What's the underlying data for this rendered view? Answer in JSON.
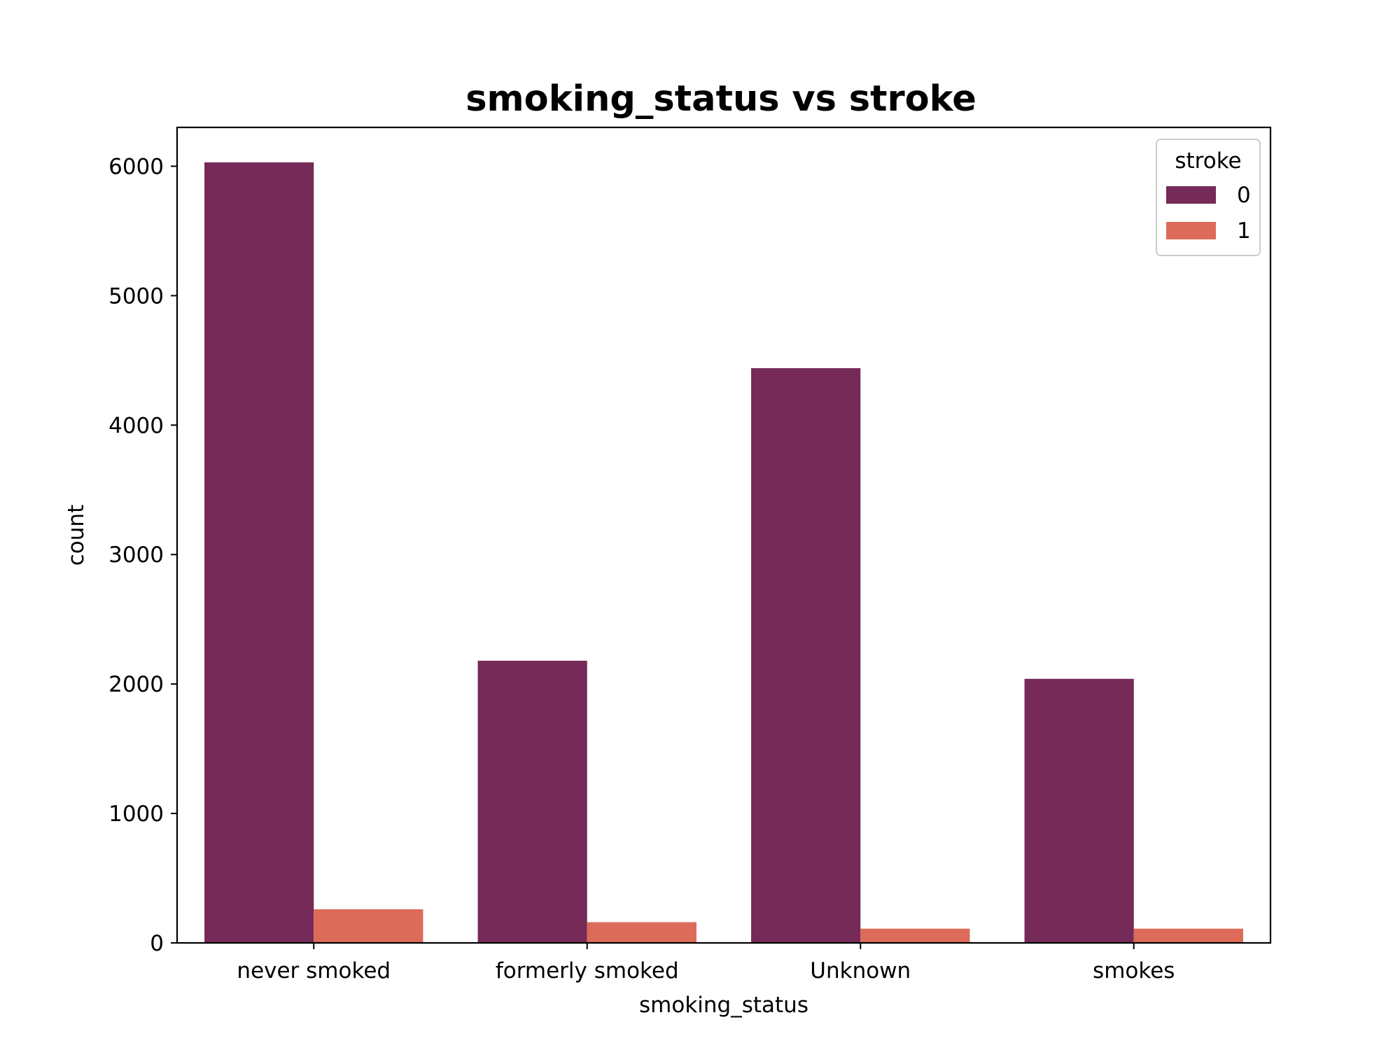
{
  "chart_data": {
    "type": "bar",
    "title": "smoking_status vs stroke",
    "xlabel": "smoking_status",
    "ylabel": "count",
    "categories": [
      "never smoked",
      "formerly smoked",
      "Unknown",
      "smokes"
    ],
    "series": [
      {
        "name": "0",
        "values": [
          6030,
          2180,
          4440,
          2040
        ],
        "color": "#752a57"
      },
      {
        "name": "1",
        "values": [
          260,
          160,
          110,
          110
        ],
        "color": "#dd6b59"
      }
    ],
    "ylim": [
      0,
      6300
    ],
    "yticks": [
      "0",
      "1000",
      "2000",
      "3000",
      "4000",
      "5000",
      "6000"
    ],
    "grid": false,
    "legend": {
      "title": "stroke",
      "position": "top-right"
    }
  }
}
